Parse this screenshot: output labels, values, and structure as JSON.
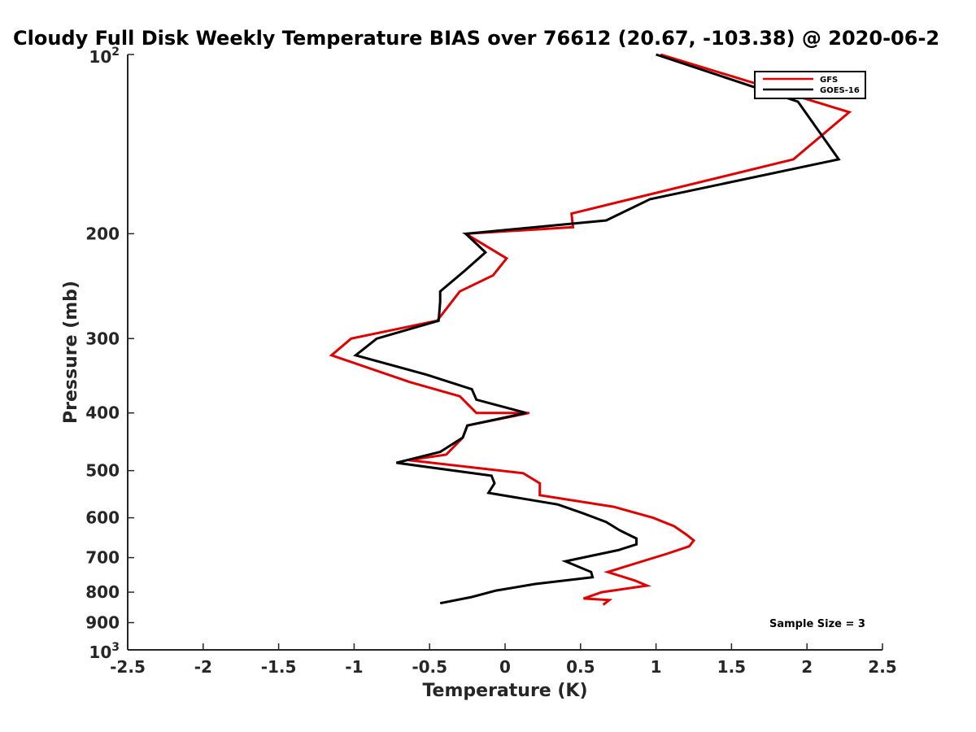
{
  "chart_data": {
    "type": "line",
    "title": "Cloudy Full Disk Weekly Temperature BIAS over 76612 (20.67, -103.38) @ 2020-06-2",
    "xlabel": "Temperature (K)",
    "ylabel": "Pressure (mb)",
    "xlim": [
      -2.5,
      2.5
    ],
    "ylim": [
      100,
      1000
    ],
    "y_scale": "log",
    "y_reversed": true,
    "grid": false,
    "legend_position": "top-right",
    "x_ticks": [
      -2.5,
      -2,
      -1.5,
      -1,
      -0.5,
      0,
      0.5,
      1,
      1.5,
      2,
      2.5
    ],
    "x_tick_labels": [
      "-2.5",
      "-2",
      "-1.5",
      "-1",
      "-0.5",
      "0",
      "0.5",
      "1",
      "1.5",
      "2",
      "2.5"
    ],
    "y_ticks": [
      200,
      300,
      400,
      500,
      600,
      700,
      800,
      900
    ],
    "y_tick_labels": [
      "200",
      "300",
      "400",
      "500",
      "600",
      "700",
      "800",
      "900"
    ],
    "y_top_label": {
      "base": "10",
      "exp": "2"
    },
    "y_bottom_label": {
      "base": "10",
      "exp": "3"
    },
    "series": [
      {
        "name": "GFS",
        "color": "#e00000",
        "x": [
          1.03,
          2.28,
          1.91,
          0.44,
          0.45,
          -0.26,
          0.01,
          -0.08,
          -0.3,
          -0.45,
          -1.02,
          -1.15,
          -0.63,
          -0.3,
          -0.19,
          0.16,
          -0.25,
          -0.28,
          -0.39,
          -0.64,
          0.12,
          0.23,
          0.23,
          0.72,
          0.98,
          1.12,
          1.2,
          1.25,
          1.22,
          1.07,
          0.68,
          0.86,
          0.94,
          0.64,
          0.52,
          0.69,
          0.65
        ],
        "y": [
          100,
          125,
          150,
          185,
          195,
          200,
          220,
          235,
          250,
          280,
          300,
          320,
          355,
          375,
          400,
          400,
          420,
          440,
          470,
          480,
          505,
          525,
          550,
          575,
          600,
          620,
          640,
          655,
          670,
          690,
          740,
          765,
          780,
          800,
          820,
          825,
          840
        ]
      },
      {
        "name": "GOES-16",
        "color": "#000000",
        "x": [
          1.0,
          1.94,
          2.21,
          0.96,
          0.67,
          -0.26,
          -0.13,
          -0.26,
          -0.43,
          -0.43,
          -0.44,
          -0.85,
          -0.99,
          -0.52,
          -0.22,
          -0.19,
          0.14,
          -0.25,
          -0.28,
          -0.43,
          -0.72,
          -0.09,
          -0.07,
          -0.11,
          0.35,
          0.52,
          0.67,
          0.76,
          0.87,
          0.87,
          0.75,
          0.4,
          0.57,
          0.58,
          0.2,
          -0.06,
          -0.22,
          -0.43
        ],
        "y": [
          100,
          120,
          150,
          175,
          190,
          200,
          215,
          230,
          250,
          260,
          280,
          300,
          320,
          345,
          365,
          380,
          400,
          420,
          440,
          465,
          485,
          510,
          525,
          545,
          570,
          590,
          610,
          630,
          650,
          665,
          680,
          710,
          740,
          755,
          775,
          795,
          815,
          835
        ]
      }
    ],
    "annotation": "Sample Size = 3"
  }
}
